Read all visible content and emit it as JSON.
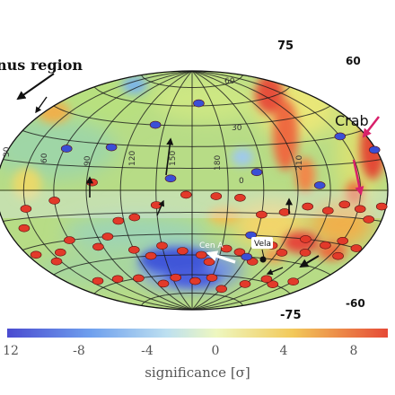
{
  "chart_data": {
    "type": "heatmap",
    "projection": "Hammer-Aitoff",
    "title": "",
    "colorbar": {
      "label": "significance [σ]",
      "ticks": [
        "12",
        "-8",
        "-4",
        "0",
        "4",
        "8"
      ],
      "range": [
        -12,
        12
      ],
      "colors": [
        "#4a4bd0",
        "#6fa0ee",
        "#bde0f0",
        "#eef7bf",
        "#f2c95a",
        "#e64a37"
      ]
    },
    "grid_labels": {
      "dec_top": [
        "75",
        "60",
        "60",
        "30",
        "0"
      ],
      "dec_bottom": [
        "-75",
        "-60"
      ],
      "ra": [
        "30",
        "60",
        "90",
        "120",
        "150",
        "180",
        "210"
      ]
    },
    "annotations": {
      "region": "nus region",
      "crab": "Crab",
      "cen_a": "Cen A",
      "vela": "Vela"
    },
    "hotspot_colors": {
      "positive": "#e23a2a",
      "negative": "#3a4fd6"
    },
    "markers": {
      "blue": [
        [
          -10,
          62
        ],
        [
          40,
          45
        ],
        [
          -150,
          30
        ],
        [
          -178,
          20
        ],
        [
          75,
          28
        ],
        [
          118,
          25
        ],
        [
          -55,
          12
        ],
        [
          -55,
          -30
        ],
        [
          -60,
          -45
        ],
        [
          18,
          8
        ],
        [
          -110,
          3
        ]
      ],
      "red": [
        [
          -175,
          -8
        ],
        [
          -165,
          -15
        ],
        [
          -152,
          -10
        ],
        [
          -135,
          -8
        ],
        [
          -120,
          -12
        ],
        [
          -100,
          -10
        ],
        [
          -80,
          -14
        ],
        [
          -60,
          -16
        ],
        [
          -40,
          -5
        ],
        [
          -20,
          -4
        ],
        [
          5,
          -3
        ],
        [
          30,
          -10
        ],
        [
          50,
          -18
        ],
        [
          65,
          -20
        ],
        [
          85,
          5
        ],
        [
          120,
          -6
        ],
        [
          150,
          -10
        ],
        [
          160,
          -20
        ],
        [
          -172,
          -30
        ],
        [
          -160,
          -36
        ],
        [
          -150,
          -28
        ],
        [
          -135,
          -32
        ],
        [
          -120,
          -38
        ],
        [
          -110,
          -30
        ],
        [
          -95,
          -40
        ],
        [
          -80,
          -36
        ],
        [
          -70,
          -48
        ],
        [
          -50,
          -42
        ],
        [
          -35,
          -40
        ],
        [
          -20,
          -50
        ],
        [
          -10,
          -45
        ],
        [
          10,
          -42
        ],
        [
          30,
          -38
        ],
        [
          45,
          -45
        ],
        [
          60,
          -40
        ],
        [
          80,
          -30
        ],
        [
          95,
          -36
        ],
        [
          120,
          -30
        ],
        [
          140,
          -36
        ],
        [
          155,
          -40
        ],
        [
          170,
          -34
        ],
        [
          -150,
          -55
        ],
        [
          -130,
          -60
        ],
        [
          -110,
          -58
        ],
        [
          -90,
          -64
        ],
        [
          -60,
          -70
        ],
        [
          -30,
          -62
        ],
        [
          -5,
          -65
        ],
        [
          25,
          -62
        ],
        [
          50,
          -66
        ],
        [
          80,
          -60
        ],
        [
          110,
          -58
        ],
        [
          140,
          -56
        ]
      ]
    }
  }
}
